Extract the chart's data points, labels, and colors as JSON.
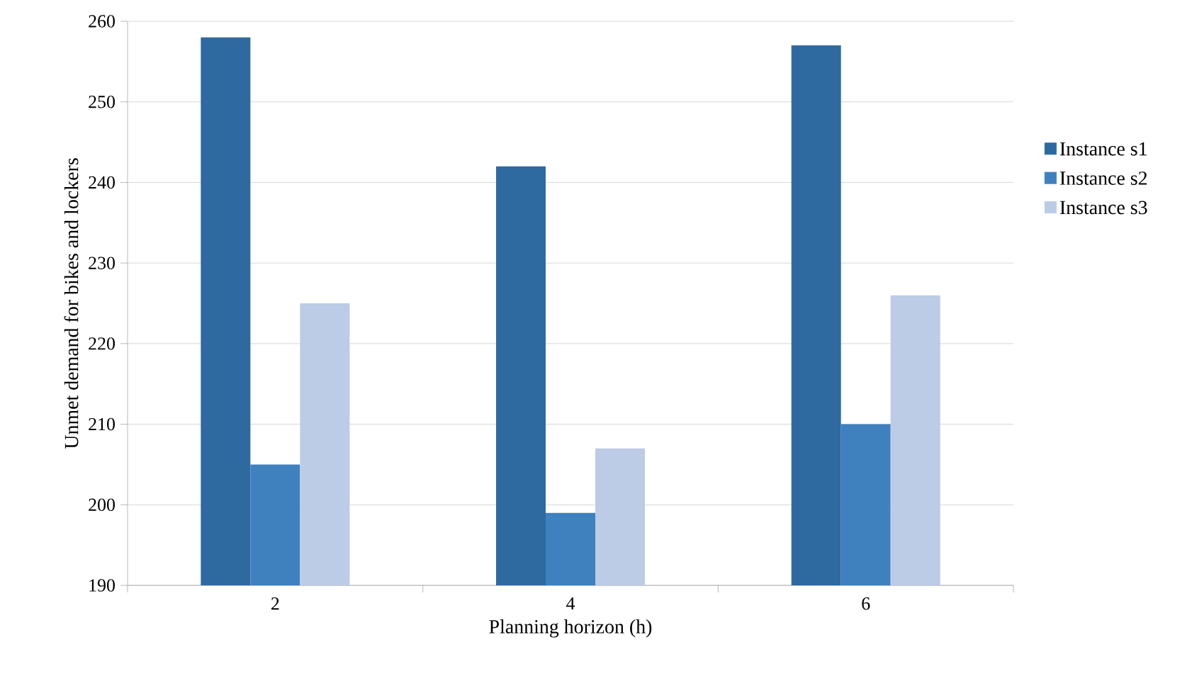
{
  "chart_data": {
    "type": "bar",
    "xlabel": "Planning horizon (h)",
    "ylabel": "Unmet demand for bikes and lockers",
    "categories": [
      "2",
      "4",
      "6"
    ],
    "series": [
      {
        "name": "Instance s1",
        "color": "#2e6aa0",
        "values": [
          258,
          242,
          257
        ]
      },
      {
        "name": "Instance s2",
        "color": "#3f80bf",
        "values": [
          205,
          199,
          210
        ]
      },
      {
        "name": "Instance s3",
        "color": "#bccbe6",
        "values": [
          225,
          207,
          226
        ]
      }
    ],
    "ylim": [
      190,
      260
    ],
    "yticks": [
      190,
      200,
      210,
      220,
      230,
      240,
      250,
      260
    ],
    "grid": "y",
    "legend": "right"
  }
}
